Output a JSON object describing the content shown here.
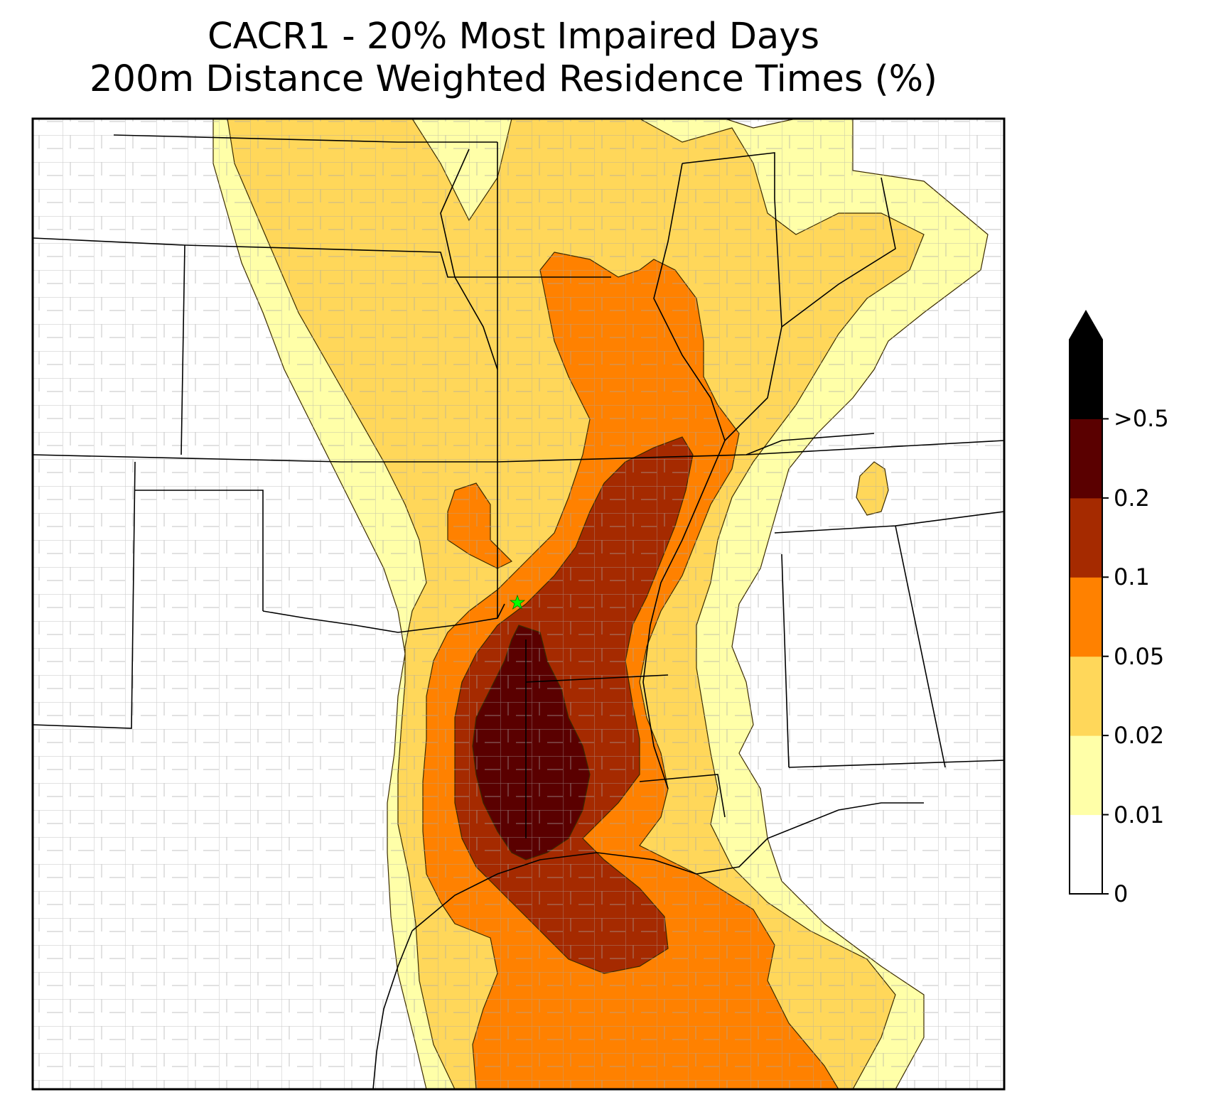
{
  "title": {
    "line1": "CACR1 - 20% Most Impaired Days",
    "line2": "200m Distance Weighted Residence Times (%)"
  },
  "site_marker": {
    "icon": "star-icon",
    "color": "#00ff00"
  },
  "colorbar": {
    "extend": "max",
    "levels": [
      {
        "label": "0",
        "color": "#ffffff"
      },
      {
        "label": "0.01",
        "color": "#ffffa8"
      },
      {
        "label": "0.02",
        "color": "#ffd75a"
      },
      {
        "label": "0.05",
        "color": "#ff8100"
      },
      {
        "label": "0.1",
        "color": "#a52a00"
      },
      {
        "label": "0.2",
        "color": "#5a0000"
      },
      {
        "label": ">0.5",
        "color": "#000000"
      }
    ]
  },
  "colors": {
    "state_borders": "#000000",
    "county_borders": "#a0a0a0",
    "frame": "#000000"
  }
}
